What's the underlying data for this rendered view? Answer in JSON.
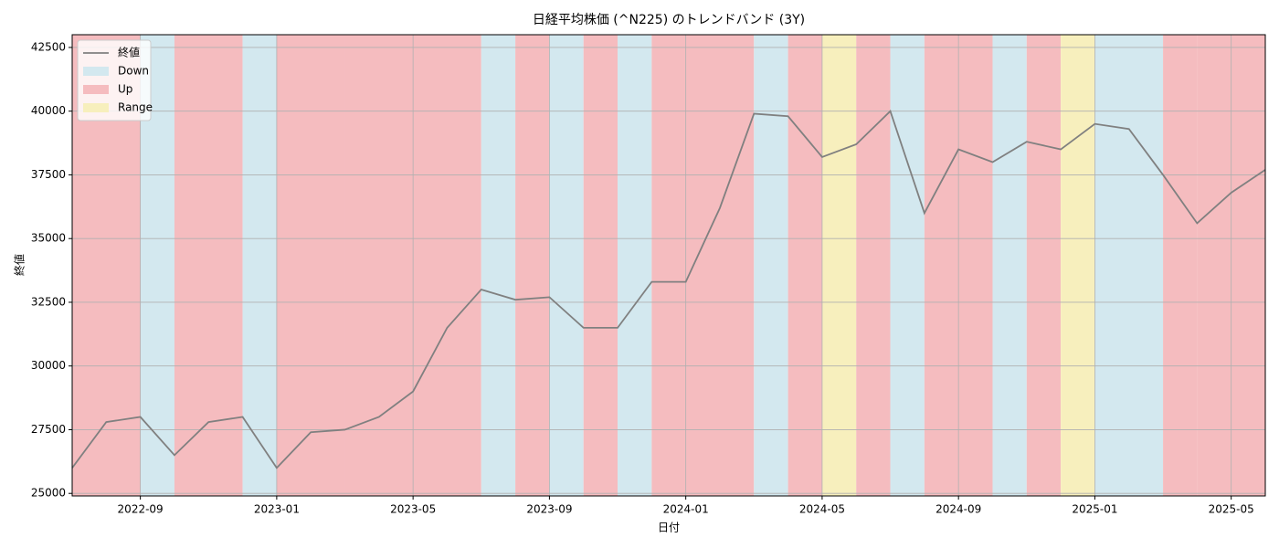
{
  "chart_data": {
    "type": "line",
    "title": "日経平均株価 (^N225) のトレンドバンド (3Y)",
    "xlabel": "日付",
    "ylabel": "終値",
    "x": [
      "2022-07",
      "2022-08",
      "2022-09",
      "2022-10",
      "2022-11",
      "2022-12",
      "2023-01",
      "2023-02",
      "2023-03",
      "2023-04",
      "2023-05",
      "2023-06",
      "2023-07",
      "2023-08",
      "2023-09",
      "2023-10",
      "2023-11",
      "2023-12",
      "2024-01",
      "2024-02",
      "2024-03",
      "2024-04",
      "2024-05",
      "2024-06",
      "2024-07",
      "2024-08",
      "2024-09",
      "2024-10",
      "2024-11",
      "2024-12",
      "2025-01",
      "2025-02",
      "2025-03",
      "2025-04",
      "2025-05",
      "2025-06"
    ],
    "series": [
      {
        "name": "終値",
        "color": "#808080",
        "values": [
          26000,
          27800,
          28000,
          26500,
          27800,
          28000,
          26000,
          27400,
          27500,
          28000,
          29000,
          31500,
          33000,
          32600,
          32700,
          31500,
          31500,
          33300,
          33300,
          36200,
          39900,
          39800,
          38200,
          38700,
          40000,
          36000,
          38500,
          38000,
          38800,
          38500,
          39500,
          39300,
          37500,
          35600,
          36800,
          37700
        ]
      }
    ],
    "trends": [
      {
        "name": "Down",
        "color": "#d3e8ef"
      },
      {
        "name": "Up",
        "color": "#f5bcbf"
      },
      {
        "name": "Range",
        "color": "#f7efbd"
      }
    ],
    "bands": [
      {
        "start": "2022-07",
        "end": "2022-09",
        "trend": "Up"
      },
      {
        "start": "2022-09",
        "end": "2022-10",
        "trend": "Down"
      },
      {
        "start": "2022-10",
        "end": "2022-12",
        "trend": "Up"
      },
      {
        "start": "2022-12",
        "end": "2023-01",
        "trend": "Down"
      },
      {
        "start": "2023-01",
        "end": "2023-03",
        "trend": "Up"
      },
      {
        "start": "2023-03",
        "end": "2023-07",
        "trend": "Up"
      },
      {
        "start": "2023-07",
        "end": "2023-08",
        "trend": "Down"
      },
      {
        "start": "2023-08",
        "end": "2023-09",
        "trend": "Up"
      },
      {
        "start": "2023-09",
        "end": "2023-10",
        "trend": "Down"
      },
      {
        "start": "2023-10",
        "end": "2023-11",
        "trend": "Up"
      },
      {
        "start": "2023-11",
        "end": "2023-12",
        "trend": "Down"
      },
      {
        "start": "2023-12",
        "end": "2024-03",
        "trend": "Up"
      },
      {
        "start": "2024-03",
        "end": "2024-04",
        "trend": "Down"
      },
      {
        "start": "2024-04",
        "end": "2024-05",
        "trend": "Up"
      },
      {
        "start": "2024-05",
        "end": "2024-06",
        "trend": "Range"
      },
      {
        "start": "2024-06",
        "end": "2024-07",
        "trend": "Up"
      },
      {
        "start": "2024-07",
        "end": "2024-08",
        "trend": "Down"
      },
      {
        "start": "2024-08",
        "end": "2024-10",
        "trend": "Up"
      },
      {
        "start": "2024-10",
        "end": "2024-11",
        "trend": "Down"
      },
      {
        "start": "2024-11",
        "end": "2024-12",
        "trend": "Up"
      },
      {
        "start": "2024-12",
        "end": "2025-01",
        "trend": "Range"
      },
      {
        "start": "2025-01",
        "end": "2025-03",
        "trend": "Down"
      },
      {
        "start": "2025-03",
        "end": "2025-04",
        "trend": "Up"
      },
      {
        "start": "2025-04",
        "end": "2025-06",
        "trend": "Up"
      }
    ],
    "xlim": [
      "2022-07",
      "2025-06"
    ],
    "xticks": [
      "2022-09",
      "2023-01",
      "2023-05",
      "2023-09",
      "2024-01",
      "2024-05",
      "2024-09",
      "2025-01",
      "2025-05"
    ],
    "ylim": [
      24900,
      43000
    ],
    "yticks": [
      25000,
      27500,
      30000,
      32500,
      35000,
      37500,
      40000,
      42500
    ],
    "grid": true,
    "legend": "upper left"
  }
}
